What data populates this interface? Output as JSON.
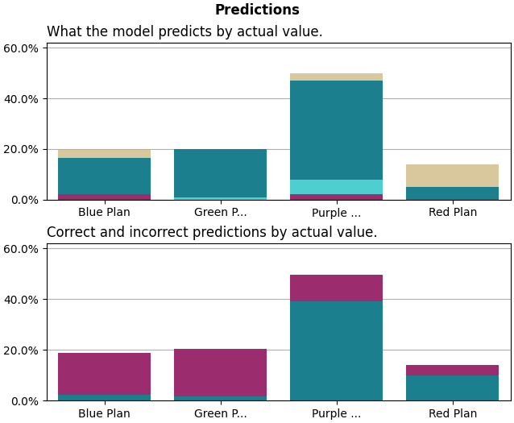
{
  "chart_data": [
    {
      "type": "bar",
      "stacked": true,
      "grid": true,
      "title": "Predictions",
      "subtitle": "What the model predicts by actual value.",
      "categories": [
        "Blue Plan",
        "Green P...",
        "Purple ...",
        "Red Plan"
      ],
      "series": [
        {
          "color": "#9B2C6E",
          "values": [
            0.02,
            0.0,
            0.02,
            0.0
          ]
        },
        {
          "color": "#4ECECE",
          "values": [
            0.0,
            0.01,
            0.06,
            0.0
          ]
        },
        {
          "color": "#1B7F8E",
          "values": [
            0.145,
            0.19,
            0.39,
            0.05
          ]
        },
        {
          "color": "#D9C89E",
          "values": [
            0.03,
            0.0,
            0.03,
            0.09
          ]
        }
      ],
      "ylim": [
        0,
        0.62
      ],
      "yticks": [
        {
          "value": 0.0,
          "label": "0.0%"
        },
        {
          "value": 0.2,
          "label": "20.0%"
        },
        {
          "value": 0.4,
          "label": "40.0%"
        },
        {
          "value": 0.6,
          "label": "60.0%"
        }
      ]
    },
    {
      "type": "bar",
      "stacked": true,
      "grid": true,
      "subtitle": "Correct and incorrect predictions by actual value.",
      "categories": [
        "Blue Plan",
        "Green P...",
        "Purple ...",
        "Red Plan"
      ],
      "series": [
        {
          "color": "#1B7F8E",
          "values": [
            0.022,
            0.015,
            0.39,
            0.1
          ]
        },
        {
          "color": "#9B2C6E",
          "values": [
            0.165,
            0.19,
            0.105,
            0.04
          ]
        }
      ],
      "ylim": [
        0,
        0.62
      ],
      "yticks": [
        {
          "value": 0.0,
          "label": "0.0%"
        },
        {
          "value": 0.2,
          "label": "20.0%"
        },
        {
          "value": 0.4,
          "label": "40.0%"
        },
        {
          "value": 0.6,
          "label": "60.0%"
        }
      ]
    }
  ]
}
